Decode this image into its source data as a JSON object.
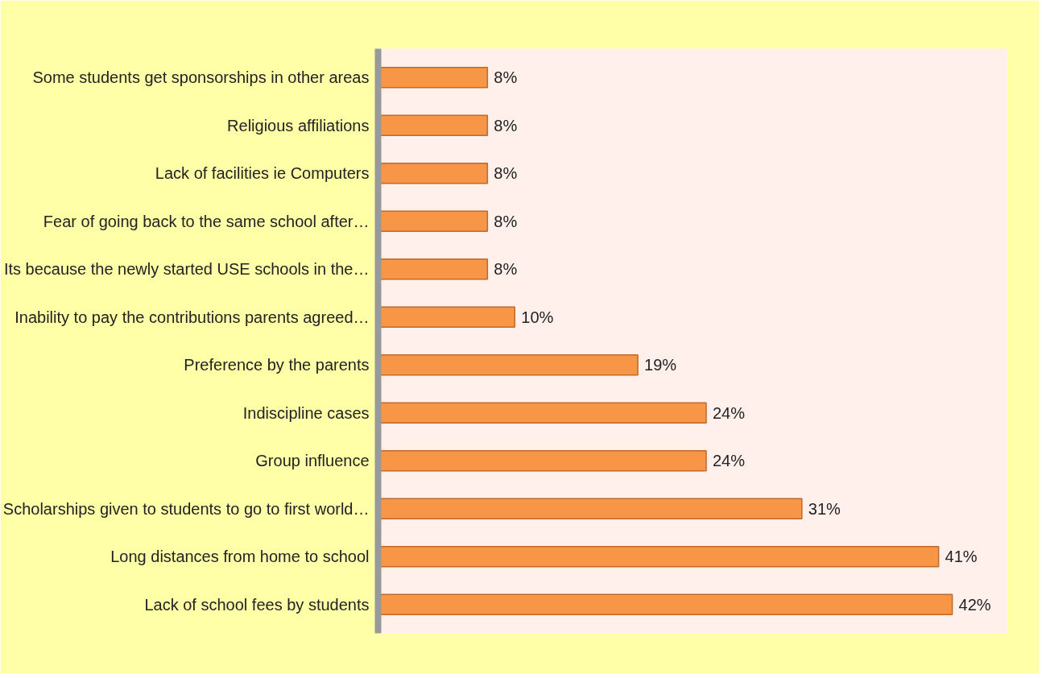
{
  "chart_data": {
    "type": "bar",
    "orientation": "horizontal",
    "categories": [
      "Some students get sponsorships in other areas",
      "Religious affiliations",
      "Lack of facilities ie Computers",
      "Fear of going back to the same school after…",
      "Its because the newly started USE schools in the…",
      "Inability to pay the contributions parents agreed…",
      "Preference by the parents",
      "Indiscipline cases",
      "Group influence",
      "Scholarships given to students to go to first world…",
      "Long distances from home to school",
      "Lack of school fees by students"
    ],
    "values": [
      8,
      8,
      8,
      8,
      8,
      10,
      19,
      24,
      24,
      31,
      41,
      42
    ],
    "value_labels": [
      "8%",
      "8%",
      "8%",
      "8%",
      "8%",
      "10%",
      "19%",
      "24%",
      "24%",
      "31%",
      "41%",
      "42%"
    ],
    "color": "#f79646",
    "xlim": [
      0,
      46
    ],
    "tick_labels": "y",
    "grid": false
  }
}
